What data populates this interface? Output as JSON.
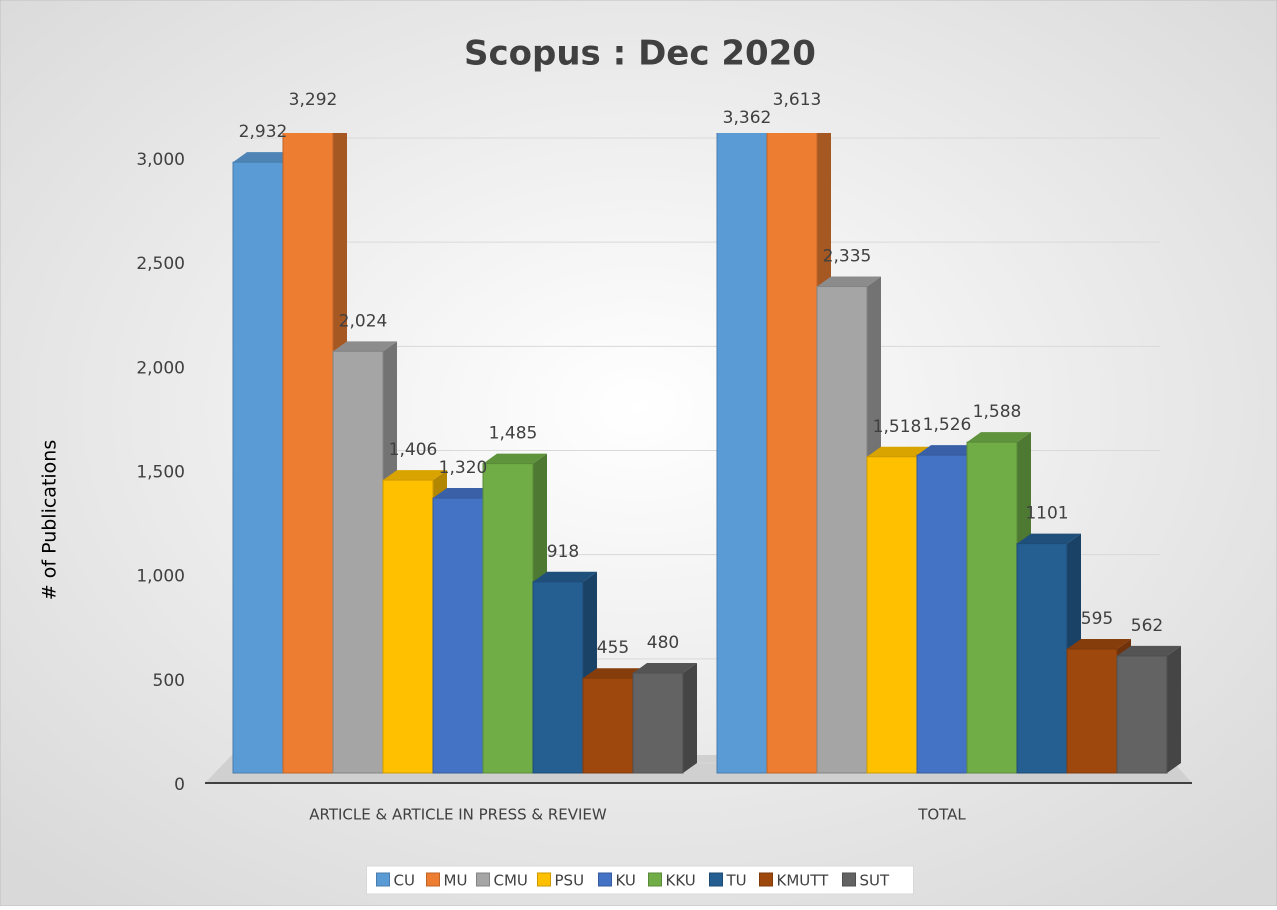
{
  "chart_data": {
    "type": "bar",
    "title": "Scopus : Dec 2020",
    "y_label": "# of Publications",
    "categories": [
      "ARTICLE & ARTICLE IN PRESS & REVIEW",
      "TOTAL"
    ],
    "ylim": [
      0,
      3000
    ],
    "yticks": [
      0,
      500,
      {
        "value": 1000,
        "label": "1,000"
      },
      {
        "value": 1500,
        "label": "1,500"
      },
      {
        "value": 2000,
        "label": "2,000"
      },
      {
        "value": 2500,
        "label": "2,500"
      },
      {
        "value": 3000,
        "label": "3,000"
      }
    ],
    "grid": true,
    "legend": "bottom",
    "series": [
      {
        "name": "CU",
        "color": "#5b9bd5",
        "values": [
          2932,
          3362
        ],
        "value_labels": [
          "2,932",
          "3,362"
        ]
      },
      {
        "name": "MU",
        "color": "#ed7d31",
        "values": [
          3292,
          3613
        ],
        "value_labels": [
          "3,292",
          "3,613"
        ]
      },
      {
        "name": "CMU",
        "color": "#a5a5a5",
        "values": [
          2024,
          2335
        ],
        "value_labels": [
          "2,024",
          "2,335"
        ]
      },
      {
        "name": "PSU",
        "color": "#ffc000",
        "values": [
          1406,
          1518
        ],
        "value_labels": [
          "1,406",
          "1,518"
        ]
      },
      {
        "name": "KU",
        "color": "#4472c4",
        "values": [
          1320,
          1526
        ],
        "value_labels": [
          "1,320",
          "1,526"
        ]
      },
      {
        "name": "KKU",
        "color": "#70ad47",
        "values": [
          1485,
          1588
        ],
        "value_labels": [
          "1,485",
          "1,588"
        ]
      },
      {
        "name": "TU",
        "color": "#255e91",
        "values": [
          918,
          1101
        ]
      },
      {
        "name": "KMUTT",
        "color": "#9e480e",
        "values": [
          455,
          595
        ]
      },
      {
        "name": "SUT",
        "color": "#636363",
        "values": [
          480,
          562
        ]
      }
    ]
  }
}
